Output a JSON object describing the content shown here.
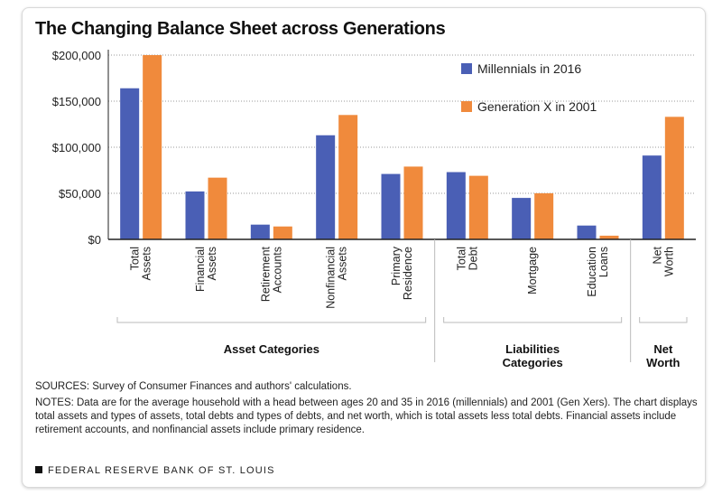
{
  "title": "The Changing Balance Sheet across Generations",
  "chart_data": {
    "type": "bar",
    "categories": [
      [
        "Total",
        "Assets"
      ],
      [
        "Financial",
        "Assets"
      ],
      [
        "Retirement",
        "Accounts"
      ],
      [
        "Nonfinancial",
        "Assets"
      ],
      [
        "Primary",
        "Residence"
      ],
      [
        "Total",
        "Debt"
      ],
      [
        "Mortgage"
      ],
      [
        "Education",
        "Loans"
      ],
      [
        "Net",
        "Worth"
      ]
    ],
    "series": [
      {
        "name": "Millennials in 2016",
        "color": "#4a5fb5",
        "values": [
          164000,
          52000,
          16000,
          113000,
          71000,
          73000,
          45000,
          15000,
          91000
        ]
      },
      {
        "name": "Generation X in 2001",
        "color": "#f08a3c",
        "values": [
          200000,
          67000,
          14000,
          135000,
          79000,
          69000,
          50000,
          4000,
          133000
        ]
      }
    ],
    "ylim": [
      0,
      200000
    ],
    "yticks": [
      "$0",
      "$50,000",
      "$100,000",
      "$150,000",
      "$200,000"
    ],
    "ytick_values": [
      0,
      50000,
      100000,
      150000,
      200000
    ],
    "grid": "dotted horizontal",
    "legend": "top-right",
    "groups": [
      {
        "label": [
          "Asset Categories"
        ],
        "span": [
          0,
          4
        ]
      },
      {
        "label": [
          "Liabilities",
          "Categories"
        ],
        "span": [
          5,
          7
        ]
      },
      {
        "label": [
          "Net",
          "Worth"
        ],
        "span": [
          8,
          8
        ]
      }
    ]
  },
  "sources": "SOURCES: Survey of Consumer Finances and authors' calculations.",
  "notes": "NOTES: Data are for the average household with a head between ages 20 and 35 in 2016 (millennials) and 2001 (Gen Xers). The chart displays total assets and types of assets, total debts and types of debts, and net worth, which is total assets less total debts. Financial assets include retirement accounts, and nonfinancial assets include primary residence.",
  "footer": "FEDERAL RESERVE BANK OF ST. LOUIS"
}
